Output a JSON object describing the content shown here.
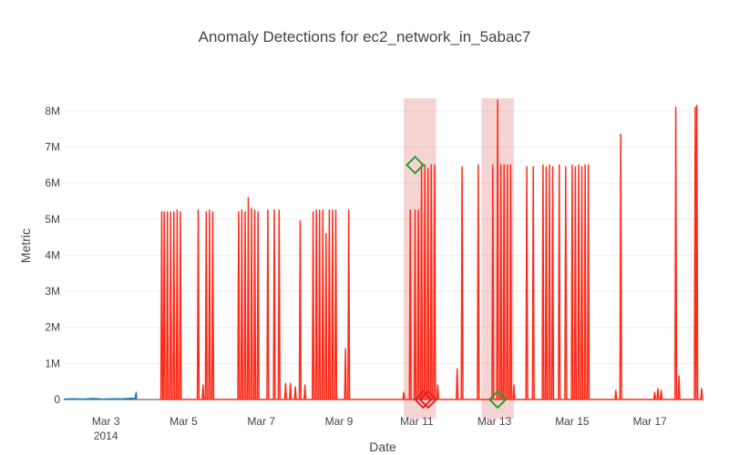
{
  "chart_data": {
    "type": "line",
    "title": "Anomaly Detections for ec2_network_in_5abac7",
    "xlabel": "Date",
    "ylabel": "Metric",
    "x_range": [
      "2014-03-01T22:00",
      "2014-03-18T08:00"
    ],
    "ylim": [
      -530000,
      8350000
    ],
    "grid": true,
    "legend": "none",
    "x_ticks": [
      {
        "value": "2014-03-03",
        "label": "Mar 3",
        "sublabel": "2014"
      },
      {
        "value": "2014-03-05",
        "label": "Mar 5",
        "sublabel": ""
      },
      {
        "value": "2014-03-07",
        "label": "Mar 7",
        "sublabel": ""
      },
      {
        "value": "2014-03-09",
        "label": "Mar 9",
        "sublabel": ""
      },
      {
        "value": "2014-03-11",
        "label": "Mar 11",
        "sublabel": ""
      },
      {
        "value": "2014-03-13",
        "label": "Mar 13",
        "sublabel": ""
      },
      {
        "value": "2014-03-15",
        "label": "Mar 15",
        "sublabel": ""
      },
      {
        "value": "2014-03-17",
        "label": "Mar 17",
        "sublabel": ""
      }
    ],
    "y_ticks": [
      {
        "value": 0,
        "label": "0"
      },
      {
        "value": 1000000,
        "label": "1M"
      },
      {
        "value": 2000000,
        "label": "2M"
      },
      {
        "value": 3000000,
        "label": "3M"
      },
      {
        "value": 4000000,
        "label": "4M"
      },
      {
        "value": 5000000,
        "label": "5M"
      },
      {
        "value": 6000000,
        "label": "6M"
      },
      {
        "value": 7000000,
        "label": "7M"
      },
      {
        "value": 8000000,
        "label": "8M"
      }
    ],
    "anomaly_windows": [
      {
        "start": "2014-03-10T16:00",
        "end": "2014-03-11T12:00"
      },
      {
        "start": "2014-03-12T16:00",
        "end": "2014-03-13T12:00"
      }
    ],
    "series": [
      {
        "color": "#1f77b4",
        "points": [
          [
            "2014-03-01T22:00",
            10000
          ],
          [
            "2014-03-02T04:00",
            20000
          ],
          [
            "2014-03-02T10:00",
            10000
          ],
          [
            "2014-03-02T16:00",
            25000
          ],
          [
            "2014-03-02T22:00",
            10000
          ],
          [
            "2014-03-03T04:00",
            20000
          ],
          [
            "2014-03-03T10:00",
            15000
          ],
          [
            "2014-03-03T16:00",
            30000
          ],
          [
            "2014-03-03T18:00",
            15000
          ],
          [
            "2014-03-03T18:40",
            200000
          ],
          [
            "2014-03-03T19:00",
            20000
          ]
        ]
      },
      {
        "color": "#ff2a1a",
        "spikes": [
          [
            "2014-03-04T10:30",
            5200000
          ],
          [
            "2014-03-04T12:00",
            5200000
          ],
          [
            "2014-03-04T14:00",
            5200000
          ],
          [
            "2014-03-04T16:00",
            5200000
          ],
          [
            "2014-03-04T18:00",
            5200000
          ],
          [
            "2014-03-04T20:00",
            5250000
          ],
          [
            "2014-03-04T22:00",
            5200000
          ],
          [
            "2014-03-05T09:00",
            5250000
          ],
          [
            "2014-03-05T12:00",
            400000
          ],
          [
            "2014-03-05T14:00",
            5200000
          ],
          [
            "2014-03-05T16:00",
            5250000
          ],
          [
            "2014-03-05T18:00",
            5200000
          ],
          [
            "2014-03-06T10:00",
            5200000
          ],
          [
            "2014-03-06T12:00",
            5250000
          ],
          [
            "2014-03-06T14:00",
            5200000
          ],
          [
            "2014-03-06T16:00",
            5600000
          ],
          [
            "2014-03-06T18:00",
            5300000
          ],
          [
            "2014-03-06T20:00",
            5250000
          ],
          [
            "2014-03-06T22:00",
            5200000
          ],
          [
            "2014-03-07T04:00",
            5250000
          ],
          [
            "2014-03-07T08:00",
            5250000
          ],
          [
            "2014-03-07T11:00",
            5250000
          ],
          [
            "2014-03-07T15:00",
            450000
          ],
          [
            "2014-03-07T18:00",
            450000
          ],
          [
            "2014-03-07T21:00",
            350000
          ],
          [
            "2014-03-08T00:00",
            4950000
          ],
          [
            "2014-03-08T03:00",
            400000
          ],
          [
            "2014-03-08T08:00",
            5200000
          ],
          [
            "2014-03-08T10:00",
            5250000
          ],
          [
            "2014-03-08T12:00",
            5250000
          ],
          [
            "2014-03-08T14:00",
            5250000
          ],
          [
            "2014-03-08T16:00",
            4600000
          ],
          [
            "2014-03-08T18:00",
            5250000
          ],
          [
            "2014-03-08T20:00",
            5250000
          ],
          [
            "2014-03-08T22:00",
            5250000
          ],
          [
            "2014-03-09T04:00",
            1400000
          ],
          [
            "2014-03-09T06:00",
            5250000
          ],
          [
            "2014-03-10T16:00",
            200000
          ],
          [
            "2014-03-10T20:00",
            5250000
          ],
          [
            "2014-03-10T23:00",
            5250000
          ],
          [
            "2014-03-11T01:00",
            5250000
          ],
          [
            "2014-03-11T03:00",
            6500000
          ],
          [
            "2014-03-11T05:00",
            6500000
          ],
          [
            "2014-03-11T07:00",
            6400000
          ],
          [
            "2014-03-11T09:00",
            6500000
          ],
          [
            "2014-03-11T11:00",
            6500000
          ],
          [
            "2014-03-11T13:00",
            400000
          ],
          [
            "2014-03-12T01:00",
            850000
          ],
          [
            "2014-03-12T04:00",
            6450000
          ],
          [
            "2014-03-12T14:00",
            6500000
          ],
          [
            "2014-03-12T23:00",
            6500000
          ],
          [
            "2014-03-13T02:00",
            8300000
          ],
          [
            "2014-03-13T04:00",
            6500000
          ],
          [
            "2014-03-13T06:00",
            6500000
          ],
          [
            "2014-03-13T08:00",
            6500000
          ],
          [
            "2014-03-13T10:00",
            6500000
          ],
          [
            "2014-03-13T12:00",
            400000
          ],
          [
            "2014-03-13T20:00",
            6450000
          ],
          [
            "2014-03-14T00:00",
            6450000
          ],
          [
            "2014-03-14T06:00",
            6500000
          ],
          [
            "2014-03-14T08:00",
            6450000
          ],
          [
            "2014-03-14T10:00",
            6500000
          ],
          [
            "2014-03-14T12:00",
            6450000
          ],
          [
            "2014-03-14T16:00",
            6500000
          ],
          [
            "2014-03-14T20:00",
            6450000
          ],
          [
            "2014-03-15T00:00",
            6500000
          ],
          [
            "2014-03-15T02:00",
            6450000
          ],
          [
            "2014-03-15T04:00",
            6500000
          ],
          [
            "2014-03-15T06:00",
            6450000
          ],
          [
            "2014-03-15T08:00",
            6500000
          ],
          [
            "2014-03-15T10:00",
            6500000
          ],
          [
            "2014-03-16T03:00",
            250000
          ],
          [
            "2014-03-16T06:00",
            7350000
          ],
          [
            "2014-03-17T03:00",
            200000
          ],
          [
            "2014-03-17T05:00",
            300000
          ],
          [
            "2014-03-17T07:00",
            250000
          ],
          [
            "2014-03-17T16:00",
            8100000
          ],
          [
            "2014-03-17T18:00",
            650000
          ],
          [
            "2014-03-18T04:00",
            8100000
          ],
          [
            "2014-03-18T05:00",
            8150000
          ],
          [
            "2014-03-18T08:00",
            300000
          ]
        ]
      }
    ],
    "detections": [
      {
        "x": "2014-03-10T23:00",
        "y": 6500000,
        "color": "#2ca02c"
      },
      {
        "x": "2014-03-11T04:00",
        "y": 0,
        "color": "#d62728"
      },
      {
        "x": "2014-03-11T07:00",
        "y": 0,
        "color": "#d62728"
      },
      {
        "x": "2014-03-13T02:00",
        "y": 0,
        "color": "#2ca02c"
      }
    ]
  }
}
